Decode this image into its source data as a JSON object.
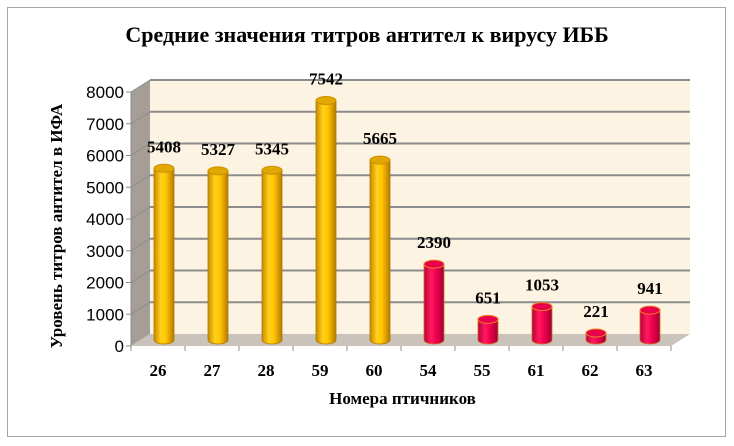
{
  "chart_data": {
    "type": "bar",
    "title": "Средние значения титров  антител  к вирусу ИББ",
    "xlabel": "Номера птичников",
    "ylabel": "Уровень титров  антител в ИФА",
    "categories": [
      "26",
      "27",
      "28",
      "59",
      "60",
      "54",
      "55",
      "61",
      "62",
      "63"
    ],
    "values": [
      5408,
      5327,
      5345,
      7542,
      5665,
      2390,
      651,
      1053,
      221,
      941
    ],
    "bar_groups": [
      "gold",
      "gold",
      "gold",
      "gold",
      "gold",
      "red",
      "red",
      "red",
      "red",
      "red"
    ],
    "ylim": [
      0,
      8000
    ],
    "yticks": [
      0,
      1000,
      2000,
      3000,
      4000,
      5000,
      6000,
      7000,
      8000
    ],
    "grid": true,
    "legend": "none",
    "style": "3d-cylinder",
    "colors": {
      "gold": "#f5b800",
      "red": "#e8004a",
      "wall": "#fdf3e2",
      "side_wall": "#a59e97",
      "floor": "#c9c3bb",
      "grid": "#8c8c8c"
    }
  }
}
